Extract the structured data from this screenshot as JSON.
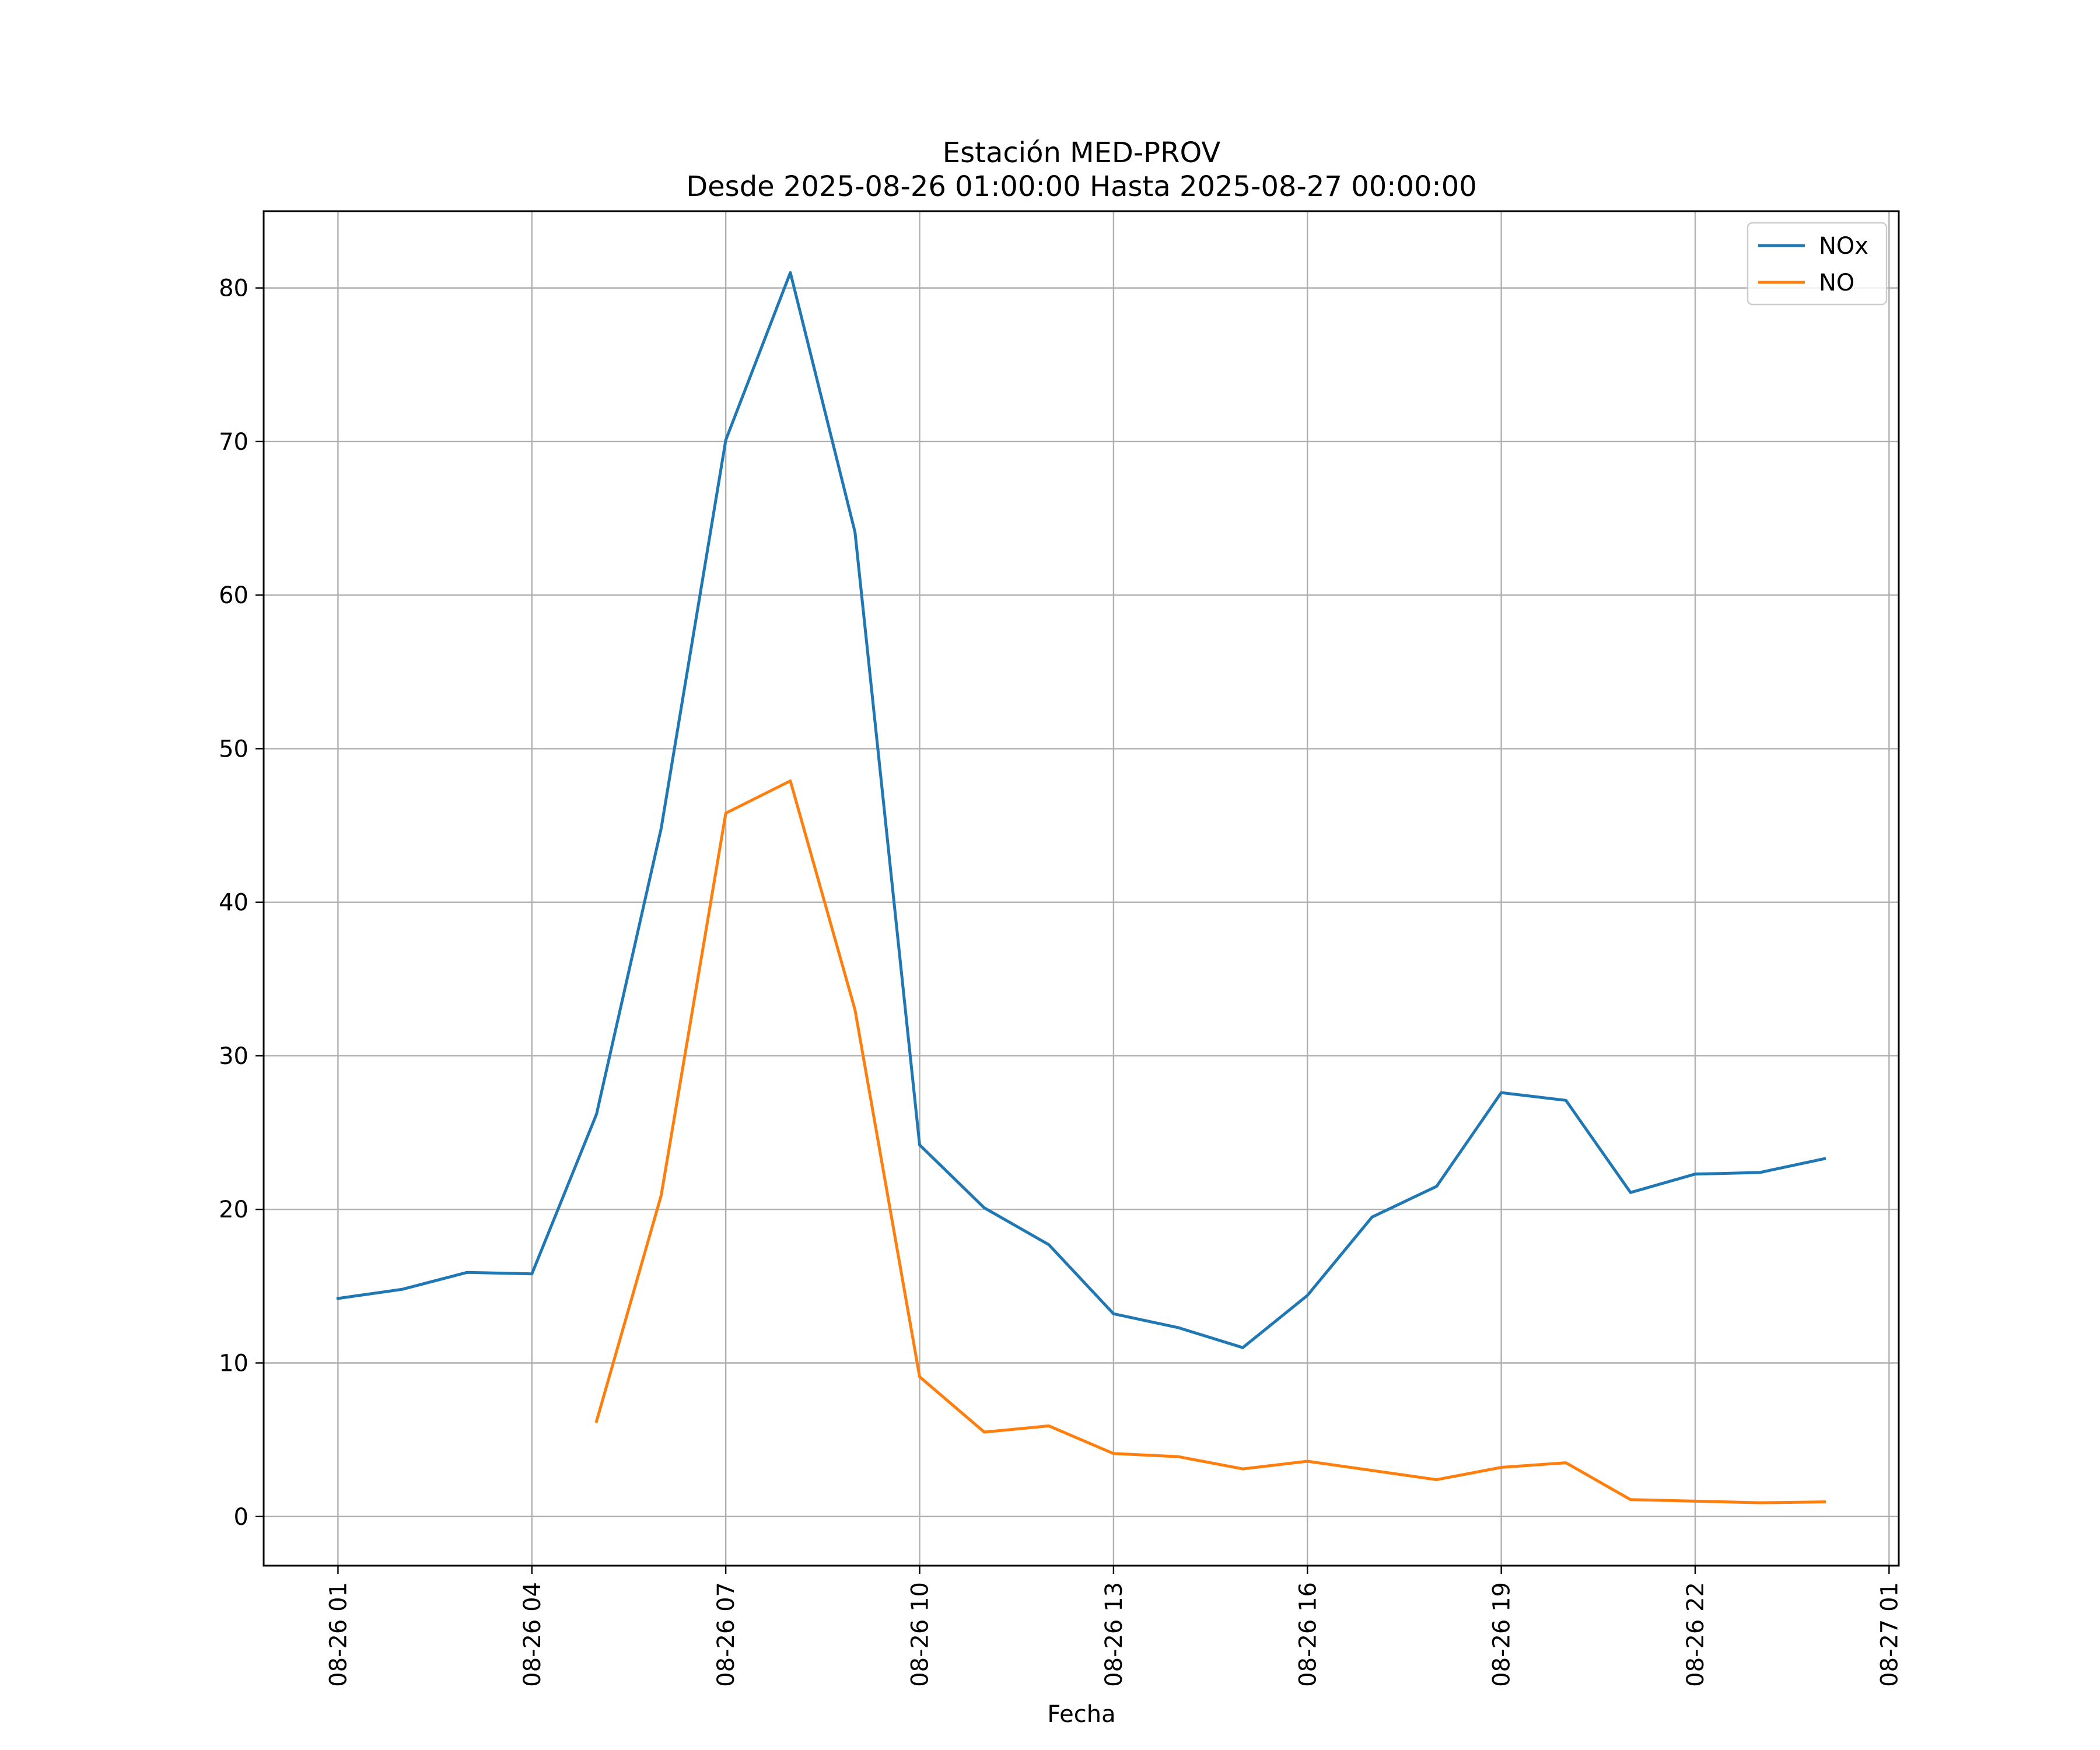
{
  "chart_data": {
    "type": "line",
    "title": "Estación MED-PROV",
    "subtitle": "Desde 2025-08-26 01:00:00 Hasta 2025-08-27 00:00:00",
    "xlabel": "Fecha",
    "ylabel": "",
    "x": [
      "2025-08-26 01:00",
      "2025-08-26 02:00",
      "2025-08-26 03:00",
      "2025-08-26 04:00",
      "2025-08-26 05:00",
      "2025-08-26 06:00",
      "2025-08-26 07:00",
      "2025-08-26 08:00",
      "2025-08-26 09:00",
      "2025-08-26 10:00",
      "2025-08-26 11:00",
      "2025-08-26 12:00",
      "2025-08-26 13:00",
      "2025-08-26 14:00",
      "2025-08-26 15:00",
      "2025-08-26 16:00",
      "2025-08-26 17:00",
      "2025-08-26 18:00",
      "2025-08-26 19:00",
      "2025-08-26 20:00",
      "2025-08-26 21:00",
      "2025-08-26 22:00",
      "2025-08-26 23:00",
      "2025-08-27 00:00"
    ],
    "series": [
      {
        "name": "NOx",
        "color": "#1f77b4",
        "values": [
          14.2,
          14.8,
          15.9,
          15.8,
          26.2,
          44.8,
          70.1,
          81.0,
          64.1,
          24.2,
          20.1,
          17.7,
          13.2,
          12.3,
          11.0,
          14.4,
          19.5,
          21.5,
          27.6,
          27.1,
          21.1,
          22.3,
          22.4,
          23.3
        ]
      },
      {
        "name": "NO",
        "color": "#ff7f0e",
        "values": [
          null,
          null,
          null,
          null,
          6.2,
          20.9,
          45.8,
          47.9,
          33.0,
          9.1,
          5.5,
          5.9,
          4.1,
          3.9,
          3.1,
          3.6,
          3.0,
          2.4,
          3.2,
          3.5,
          1.1,
          1.0,
          0.9,
          0.95
        ]
      }
    ],
    "x_ticks": [
      "2025-08-26 01:00",
      "2025-08-26 04:00",
      "2025-08-26 07:00",
      "2025-08-26 10:00",
      "2025-08-26 13:00",
      "2025-08-26 16:00",
      "2025-08-26 19:00",
      "2025-08-26 22:00",
      "2025-08-27 01:00"
    ],
    "x_tick_labels": [
      "08-26 01",
      "08-26 04",
      "08-26 07",
      "08-26 10",
      "08-26 13",
      "08-26 16",
      "08-26 19",
      "08-26 22",
      "08-27 01"
    ],
    "xlim": [
      "2025-08-25 23:51",
      "2025-08-27 01:09"
    ],
    "y_ticks": [
      0,
      10,
      20,
      30,
      40,
      50,
      60,
      70,
      80
    ],
    "ylim": [
      -3.2,
      85.0
    ],
    "grid": true,
    "legend": "top-right"
  }
}
